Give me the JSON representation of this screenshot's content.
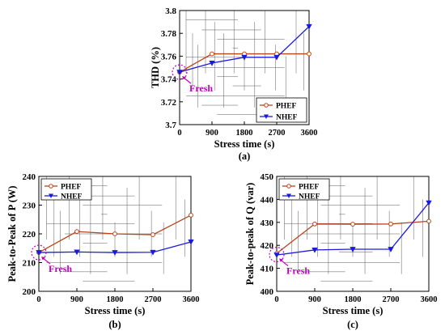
{
  "figure": {
    "colors": {
      "phef": "#b5451b",
      "nhef": "#1a1adb",
      "fresh": "#c000c0",
      "grid": "#000000"
    }
  },
  "chart_data": [
    {
      "id": "a",
      "type": "line",
      "panel_label": "(a)",
      "xlabel": "Stress time (s)",
      "ylabel": "THD (%)",
      "x": [
        0,
        900,
        1800,
        2700,
        3600
      ],
      "xlim": [
        0,
        3600
      ],
      "xticks": [
        "0",
        "900",
        "1800",
        "2700",
        "3600"
      ],
      "ylim": [
        3.7,
        3.8
      ],
      "yticks": [
        "3.7",
        "3.72",
        "3.74",
        "3.76",
        "3.78",
        "3.8"
      ],
      "series": [
        {
          "name": "PHEF",
          "marker": "circle",
          "color": "#b5451b",
          "values": [
            3.746,
            3.762,
            3.762,
            3.762,
            3.762
          ]
        },
        {
          "name": "NHEF",
          "marker": "triangle-down",
          "color": "#1a1adb",
          "values": [
            3.746,
            3.754,
            3.759,
            3.759,
            3.786
          ]
        }
      ],
      "legend": "bottom-right",
      "annotation": {
        "text": "Fresh",
        "x": 0,
        "y": 3.746
      }
    },
    {
      "id": "b",
      "type": "line",
      "panel_label": "(b)",
      "xlabel": "Stress time (s)",
      "ylabel": "Peak-to-Peak of P (W)",
      "x": [
        0,
        900,
        1800,
        2700,
        3600
      ],
      "xlim": [
        0,
        3600
      ],
      "xticks": [
        "0",
        "900",
        "1800",
        "2700",
        "3600"
      ],
      "ylim": [
        200,
        240
      ],
      "yticks": [
        "200",
        "210",
        "220",
        "230",
        "240"
      ],
      "series": [
        {
          "name": "PHEF",
          "marker": "circle",
          "color": "#b5451b",
          "values": [
            213.5,
            220.8,
            220.0,
            219.7,
            226.5
          ]
        },
        {
          "name": "NHEF",
          "marker": "triangle-down",
          "color": "#1a1adb",
          "values": [
            213.5,
            213.7,
            213.5,
            213.6,
            217.2
          ]
        }
      ],
      "legend": "top-left",
      "annotation": {
        "text": "Fresh",
        "x": 0,
        "y": 213.5
      }
    },
    {
      "id": "c",
      "type": "line",
      "panel_label": "(c)",
      "xlabel": "Stress time (s)",
      "ylabel": "Peak-to-peak of Q (var)",
      "x": [
        0,
        900,
        1800,
        2700,
        3600
      ],
      "xlim": [
        0,
        3600
      ],
      "xticks": [
        "0",
        "900",
        "1800",
        "2700",
        "3600"
      ],
      "ylim": [
        400,
        450
      ],
      "yticks": [
        "400",
        "410",
        "420",
        "430",
        "440",
        "450"
      ],
      "series": [
        {
          "name": "PHEF",
          "marker": "circle",
          "color": "#b5451b",
          "values": [
            416.5,
            429.3,
            429.2,
            429.3,
            430.5
          ]
        },
        {
          "name": "NHEF",
          "marker": "triangle-down",
          "color": "#1a1adb",
          "values": [
            415.8,
            418.0,
            418.3,
            418.3,
            438.5
          ]
        }
      ],
      "legend": "top-left",
      "annotation": {
        "text": "Fresh",
        "x": 0,
        "y": 416
      }
    }
  ]
}
